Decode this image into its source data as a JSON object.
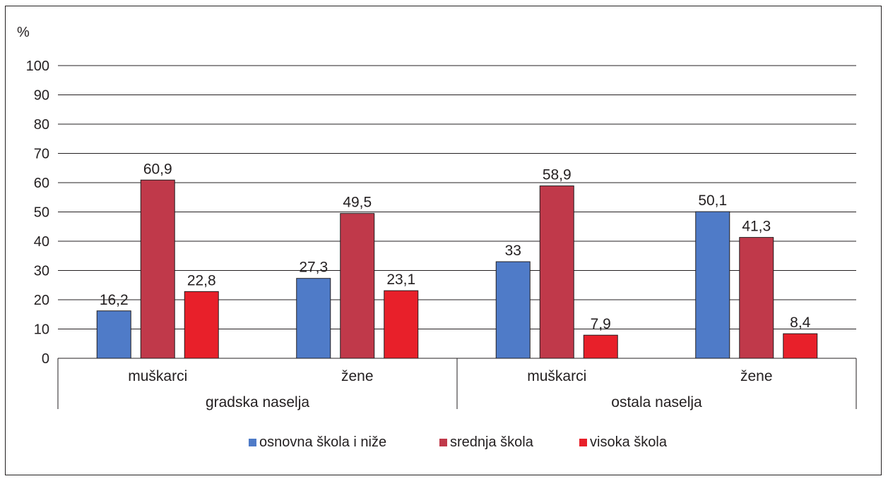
{
  "chart_data": {
    "type": "bar",
    "ylabel": "%",
    "ylim": [
      0,
      100
    ],
    "yticks": [
      0,
      10,
      20,
      30,
      40,
      50,
      60,
      70,
      80,
      90,
      100
    ],
    "grid": true,
    "legend_position": "bottom",
    "groups": [
      {
        "name": "gradska naselja",
        "categories": [
          "muškarci",
          "žene"
        ]
      },
      {
        "name": "ostala naselja",
        "categories": [
          "muškarci",
          "žene"
        ]
      }
    ],
    "categories": [
      "muškarci",
      "žene",
      "muškarci",
      "žene"
    ],
    "series": [
      {
        "name": "osnovna škola i niže",
        "color": "#4f7bc8",
        "values": [
          16.2,
          27.3,
          33,
          50.1
        ],
        "labels": [
          "16,2",
          "27,3",
          "33",
          "50,1"
        ]
      },
      {
        "name": "srednja škola",
        "color": "#c0394a",
        "values": [
          60.9,
          49.5,
          58.9,
          41.3
        ],
        "labels": [
          "60,9",
          "49,5",
          "58,9",
          "41,3"
        ]
      },
      {
        "name": "visoka škola",
        "color": "#e8202a",
        "values": [
          22.8,
          23.1,
          7.9,
          8.4
        ],
        "labels": [
          "22,8",
          "23,1",
          "7,9",
          "8,4"
        ]
      }
    ]
  }
}
